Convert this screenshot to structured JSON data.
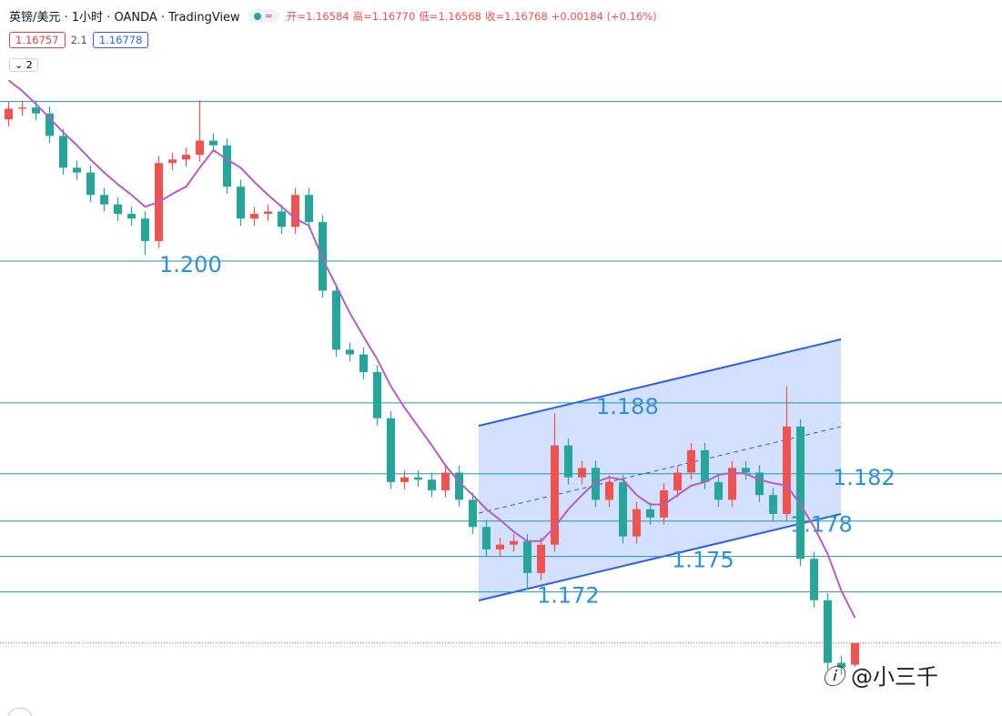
{
  "chart_data": {
    "type": "candlestick",
    "title": "英镑/美元 · 1小时 · OANDA · TradingView",
    "quote": [
      "开=1.16584",
      "高=1.16770",
      "低=1.16568",
      "收=1.16768",
      "+0.00184 (+0.16%)"
    ],
    "bid": "1.16757",
    "spread": "2.1",
    "ask": "1.16778",
    "indicator_count": "2",
    "watermark": "@小三千",
    "ylim": [
      1.1615,
      1.2221
    ],
    "up_color": "#ef5350",
    "down_color": "#26a69a",
    "ma_color": "#b25ec4",
    "level_color": "#2196a8",
    "level_label_color": "#2d8fe0",
    "levels": [
      {
        "value": 1.2135,
        "label": null
      },
      {
        "value": 1.2,
        "label": "1.200"
      },
      {
        "value": 1.188,
        "label": "1.188"
      },
      {
        "value": 1.182,
        "label": "1.182"
      },
      {
        "value": 1.178,
        "label": "1.178"
      },
      {
        "value": 1.175,
        "label": "1.175"
      },
      {
        "value": 1.172,
        "label": "1.172"
      }
    ],
    "open": [
      1.212,
      1.2129,
      1.213,
      1.2125,
      1.2106,
      1.2079,
      1.2075,
      1.2056,
      1.2048,
      1.204,
      1.2036,
      1.2017,
      1.2083,
      1.2086,
      1.209,
      1.2102,
      1.2098,
      1.2063,
      1.2036,
      1.204,
      1.2042,
      1.2029,
      1.2056,
      1.2033,
      1.1975,
      1.1925,
      1.1921,
      1.1906,
      1.1867,
      1.1813,
      1.1817,
      1.1815,
      1.1806,
      1.1821,
      1.1798,
      1.1775,
      1.1756,
      1.176,
      1.1763,
      1.1736,
      1.176,
      1.1844,
      1.1817,
      1.1825,
      1.1798,
      1.1813,
      1.1767,
      1.179,
      1.1783,
      1.1806,
      1.1821,
      1.184,
      1.1813,
      1.1798,
      1.1825,
      1.1821,
      1.1802,
      1.1786,
      1.186,
      1.1748,
      1.1713,
      1.166,
      1.16584
    ],
    "high": [
      1.2135,
      1.2136,
      1.2136,
      1.2131,
      1.2112,
      1.2085,
      1.2081,
      1.2062,
      1.2054,
      1.2046,
      1.2042,
      1.2089,
      1.2092,
      1.2096,
      1.2136,
      1.2108,
      1.2104,
      1.2069,
      1.2046,
      1.2048,
      1.2048,
      1.2062,
      1.2062,
      1.2039,
      1.1981,
      1.1931,
      1.1927,
      1.1912,
      1.1873,
      1.1823,
      1.1823,
      1.1821,
      1.1827,
      1.1827,
      1.1804,
      1.1781,
      1.1766,
      1.1769,
      1.1769,
      1.1766,
      1.1871,
      1.185,
      1.1831,
      1.1831,
      1.1819,
      1.1819,
      1.1796,
      1.1796,
      1.1812,
      1.1827,
      1.1846,
      1.1846,
      1.1819,
      1.1831,
      1.1831,
      1.1827,
      1.1808,
      1.1894,
      1.1866,
      1.1754,
      1.1719,
      1.1666,
      1.1677
    ],
    "low": [
      1.2114,
      1.2123,
      1.2119,
      1.21,
      1.2073,
      1.2069,
      1.205,
      1.2042,
      1.2034,
      1.203,
      1.2005,
      1.2011,
      1.2077,
      1.208,
      1.2084,
      1.2092,
      1.2057,
      1.203,
      1.203,
      1.2034,
      1.2023,
      1.2023,
      1.2027,
      1.1969,
      1.1919,
      1.1915,
      1.19,
      1.1861,
      1.1807,
      1.1807,
      1.1809,
      1.18,
      1.18,
      1.1792,
      1.1769,
      1.175,
      1.175,
      1.1754,
      1.1722,
      1.173,
      1.1754,
      1.1811,
      1.1811,
      1.1792,
      1.1792,
      1.1761,
      1.1761,
      1.1777,
      1.1777,
      1.18,
      1.1815,
      1.1807,
      1.1792,
      1.1792,
      1.1815,
      1.1796,
      1.178,
      1.178,
      1.1742,
      1.1707,
      1.1654,
      1.165,
      1.16568
    ],
    "close": [
      1.2129,
      1.213,
      1.2125,
      1.2106,
      1.2079,
      1.2075,
      1.2056,
      1.2048,
      1.204,
      1.2036,
      1.2017,
      1.2083,
      1.2086,
      1.209,
      1.2102,
      1.2098,
      1.2063,
      1.2036,
      1.204,
      1.2042,
      1.2029,
      1.2056,
      1.2033,
      1.1975,
      1.1925,
      1.1921,
      1.1906,
      1.1867,
      1.1813,
      1.1817,
      1.1815,
      1.1806,
      1.1821,
      1.1798,
      1.1775,
      1.1756,
      1.176,
      1.1763,
      1.1736,
      1.176,
      1.1844,
      1.1817,
      1.1825,
      1.1798,
      1.1813,
      1.1767,
      1.179,
      1.1783,
      1.1806,
      1.1821,
      1.184,
      1.1813,
      1.1798,
      1.1825,
      1.1821,
      1.1802,
      1.1786,
      1.186,
      1.1748,
      1.1713,
      1.166,
      1.1656,
      1.16768
    ],
    "ma": [
      1.2153,
      1.2144,
      1.2133,
      1.2121,
      1.2109,
      1.2098,
      1.2086,
      1.2075,
      1.2065,
      1.2056,
      1.2046,
      1.205,
      1.2057,
      1.2063,
      1.2079,
      1.2094,
      1.2086,
      1.2079,
      1.2067,
      1.2056,
      1.2046,
      1.2036,
      1.203,
      1.2002,
      1.1979,
      1.1956,
      1.1936,
      1.1917,
      1.1894,
      1.1876,
      1.186,
      1.1844,
      1.1827,
      1.1813,
      1.1802,
      1.179,
      1.1781,
      1.1771,
      1.1763,
      1.1763,
      1.1775,
      1.179,
      1.1802,
      1.1813,
      1.1817,
      1.1815,
      1.1802,
      1.1794,
      1.1794,
      1.1802,
      1.181,
      1.1813,
      1.1819,
      1.1821,
      1.182,
      1.1815,
      1.1812,
      1.181,
      1.1794,
      1.1775,
      1.1752,
      1.1721,
      1.1698
    ]
  }
}
